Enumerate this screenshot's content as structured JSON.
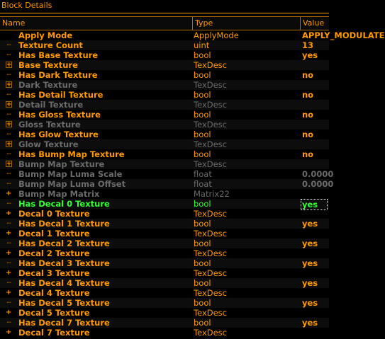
{
  "panel": {
    "title": "Block Details"
  },
  "columns": {
    "name": "Name",
    "type": "Type",
    "value": "Value"
  },
  "rows": [
    {
      "name": "Apply Mode",
      "type": "ApplyMode",
      "value": "APPLY_MODULATE",
      "expander": "",
      "style": "normal"
    },
    {
      "name": "Texture Count",
      "type": "uint",
      "value": "13",
      "expander": "dots",
      "style": "normal"
    },
    {
      "name": "Has Base Texture",
      "type": "bool",
      "value": "yes",
      "expander": "dots",
      "style": "normal"
    },
    {
      "name": "Base Texture",
      "type": "TexDesc",
      "value": "",
      "expander": "box",
      "style": "normal"
    },
    {
      "name": "Has Dark Texture",
      "type": "bool",
      "value": "no",
      "expander": "dots",
      "style": "normal"
    },
    {
      "name": "Dark Texture",
      "type": "TexDesc",
      "value": "",
      "expander": "box",
      "style": "dim"
    },
    {
      "name": "Has Detail Texture",
      "type": "bool",
      "value": "no",
      "expander": "dots",
      "style": "normal"
    },
    {
      "name": "Detail Texture",
      "type": "TexDesc",
      "value": "",
      "expander": "box",
      "style": "dim"
    },
    {
      "name": "Has Gloss Texture",
      "type": "bool",
      "value": "no",
      "expander": "dots",
      "style": "normal"
    },
    {
      "name": "Gloss Texture",
      "type": "TexDesc",
      "value": "",
      "expander": "box",
      "style": "dim"
    },
    {
      "name": "Has Glow Texture",
      "type": "bool",
      "value": "no",
      "expander": "dots",
      "style": "normal"
    },
    {
      "name": "Glow Texture",
      "type": "TexDesc",
      "value": "",
      "expander": "box",
      "style": "dim"
    },
    {
      "name": "Has Bump Map Texture",
      "type": "bool",
      "value": "no",
      "expander": "dots",
      "style": "normal"
    },
    {
      "name": "Bump Map Texture",
      "type": "TexDesc",
      "value": "",
      "expander": "box",
      "style": "dim"
    },
    {
      "name": "Bump Map Luma Scale",
      "type": "float",
      "value": "0.0000",
      "expander": "dots",
      "style": "dim"
    },
    {
      "name": "Bump Map Luma Offset",
      "type": "float",
      "value": "0.0000",
      "expander": "dots",
      "style": "dim"
    },
    {
      "name": "Bump Map Matrix",
      "type": "Matrix22",
      "value": "",
      "expander": "plus",
      "style": "dim"
    },
    {
      "name": "Has Decal 0 Texture",
      "type": "bool",
      "value": "yes",
      "expander": "dots",
      "style": "green"
    },
    {
      "name": "Decal 0 Texture",
      "type": "TexDesc",
      "value": "",
      "expander": "plus",
      "style": "normal"
    },
    {
      "name": "Has Decal 1 Texture",
      "type": "bool",
      "value": "yes",
      "expander": "dots",
      "style": "normal"
    },
    {
      "name": "Decal 1 Texture",
      "type": "TexDesc",
      "value": "",
      "expander": "plus",
      "style": "normal"
    },
    {
      "name": "Has Decal 2 Texture",
      "type": "bool",
      "value": "yes",
      "expander": "dots",
      "style": "normal"
    },
    {
      "name": "Decal 2 Texture",
      "type": "TexDesc",
      "value": "",
      "expander": "plus",
      "style": "normal"
    },
    {
      "name": "Has Decal 3 Texture",
      "type": "bool",
      "value": "yes",
      "expander": "dots",
      "style": "normal"
    },
    {
      "name": "Decal 3 Texture",
      "type": "TexDesc",
      "value": "",
      "expander": "plus",
      "style": "normal"
    },
    {
      "name": "Has Decal 4 Texture",
      "type": "bool",
      "value": "yes",
      "expander": "dots",
      "style": "normal"
    },
    {
      "name": "Decal 4 Texture",
      "type": "TexDesc",
      "value": "",
      "expander": "plus",
      "style": "normal"
    },
    {
      "name": "Has Decal 5 Texture",
      "type": "bool",
      "value": "yes",
      "expander": "dots",
      "style": "normal"
    },
    {
      "name": "Decal 5 Texture",
      "type": "TexDesc",
      "value": "",
      "expander": "plus",
      "style": "normal"
    },
    {
      "name": "Has Decal 7 Texture",
      "type": "bool",
      "value": "yes",
      "expander": "dots",
      "style": "normal"
    },
    {
      "name": "Decal 7 Texture",
      "type": "TexDesc",
      "value": "",
      "expander": "plus",
      "style": "normal"
    }
  ],
  "colors": {
    "accent": "#ff9900",
    "dim": "#6b6b6b",
    "selected": "#33ff33",
    "background": "#000000"
  }
}
